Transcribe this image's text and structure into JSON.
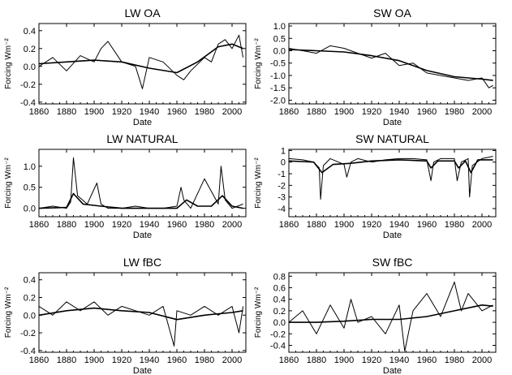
{
  "figure": {
    "panels": [
      {
        "title": "LW  OA",
        "xlabel": "Date",
        "ylabel": "Forcing Wm⁻²"
      },
      {
        "title": "SW  OA",
        "xlabel": "Date",
        "ylabel": "Forcing Wm⁻²"
      },
      {
        "title": "LW  NATURAL",
        "xlabel": "Date",
        "ylabel": "Forcing Wm⁻²"
      },
      {
        "title": "SW  NATURAL",
        "xlabel": "Date",
        "ylabel": "Forcing Wm⁻²"
      },
      {
        "title": "LW  fBC",
        "xlabel": "Date",
        "ylabel": "Forcing Wm⁻²"
      },
      {
        "title": "SW  fBC",
        "xlabel": "Date",
        "ylabel": "Forcing Wm⁻²"
      }
    ]
  },
  "chart_data": [
    {
      "type": "line",
      "title": "LW  OA",
      "xlabel": "Date",
      "ylabel": "Forcing Wm⁻²",
      "xlim": [
        1860,
        2010
      ],
      "ylim": [
        -0.42,
        0.48
      ],
      "xticks": [
        1860,
        1880,
        1900,
        1920,
        1940,
        1960,
        1980,
        2000
      ],
      "yticks": [
        -0.4,
        -0.2,
        0.0,
        0.2,
        0.4
      ],
      "ytick_labels": [
        "-0.4",
        "-0.2",
        "0.0",
        "0.2",
        "0.4"
      ],
      "series": [
        {
          "style": "annual",
          "x": [
            1860,
            1870,
            1880,
            1890,
            1900,
            1905,
            1910,
            1920,
            1930,
            1935,
            1940,
            1950,
            1960,
            1965,
            1970,
            1980,
            1985,
            1990,
            1995,
            2000,
            2005,
            2008
          ],
          "y": [
            0.0,
            0.1,
            -0.05,
            0.12,
            0.05,
            0.2,
            0.28,
            0.05,
            0.0,
            -0.25,
            0.1,
            0.05,
            -0.1,
            -0.15,
            -0.05,
            0.1,
            0.05,
            0.25,
            0.3,
            0.2,
            0.35,
            0.1
          ]
        },
        {
          "style": "smoothed",
          "x": [
            1860,
            1880,
            1900,
            1920,
            1940,
            1960,
            1975,
            1990,
            2000,
            2008
          ],
          "y": [
            0.03,
            0.05,
            0.07,
            0.05,
            -0.02,
            -0.07,
            0.05,
            0.22,
            0.25,
            0.2
          ]
        }
      ]
    },
    {
      "type": "line",
      "title": "SW  OA",
      "xlabel": "Date",
      "ylabel": "Forcing Wm⁻²",
      "xlim": [
        1860,
        2010
      ],
      "ylim": [
        -2.15,
        1.1
      ],
      "xticks": [
        1860,
        1880,
        1900,
        1920,
        1940,
        1960,
        1980,
        2000
      ],
      "yticks": [
        -2.0,
        -1.5,
        -1.0,
        -0.5,
        0.0,
        0.5,
        1.0
      ],
      "ytick_labels": [
        "-2.0",
        "-1.5",
        "-1.0",
        "-0.5",
        "0.0",
        "0.5",
        "1.0"
      ],
      "series": [
        {
          "style": "annual",
          "x": [
            1860,
            1870,
            1880,
            1890,
            1900,
            1910,
            1920,
            1930,
            1940,
            1950,
            1960,
            1970,
            1980,
            1990,
            2000,
            2005,
            2008
          ],
          "y": [
            0.1,
            0.0,
            -0.1,
            0.2,
            0.1,
            -0.1,
            -0.3,
            -0.1,
            -0.6,
            -0.5,
            -0.9,
            -1.0,
            -1.1,
            -1.2,
            -1.1,
            -1.5,
            -1.4
          ]
        },
        {
          "style": "smoothed",
          "x": [
            1860,
            1880,
            1900,
            1920,
            1940,
            1960,
            1980,
            2000,
            2008
          ],
          "y": [
            0.05,
            0.0,
            -0.05,
            -0.2,
            -0.4,
            -0.8,
            -1.05,
            -1.15,
            -1.2
          ]
        }
      ]
    },
    {
      "type": "line",
      "title": "LW  NATURAL",
      "xlabel": "Date",
      "ylabel": "Forcing Wm⁻²",
      "xlim": [
        1860,
        2010
      ],
      "ylim": [
        -0.2,
        1.4
      ],
      "xticks": [
        1860,
        1880,
        1900,
        1920,
        1940,
        1960,
        1980,
        2000
      ],
      "yticks": [
        0.0,
        0.5,
        1.0
      ],
      "ytick_labels": [
        "0.0",
        "0.5",
        "1.0"
      ],
      "series": [
        {
          "style": "annual",
          "x": [
            1860,
            1870,
            1880,
            1883,
            1885,
            1888,
            1895,
            1902,
            1905,
            1910,
            1920,
            1930,
            1940,
            1950,
            1960,
            1963,
            1965,
            1970,
            1980,
            1990,
            1992,
            1995,
            2000,
            2008
          ],
          "y": [
            0.0,
            0.05,
            0.0,
            0.15,
            1.2,
            0.3,
            0.1,
            0.6,
            0.1,
            0.0,
            0.0,
            0.05,
            0.0,
            0.0,
            0.05,
            0.5,
            0.2,
            0.0,
            0.7,
            0.1,
            1.0,
            0.2,
            0.0,
            0.1
          ]
        },
        {
          "style": "smoothed",
          "x": [
            1860,
            1880,
            1885,
            1892,
            1905,
            1920,
            1940,
            1960,
            1967,
            1975,
            1985,
            1993,
            2000,
            2008
          ],
          "y": [
            0.0,
            0.02,
            0.35,
            0.1,
            0.05,
            0.0,
            0.0,
            0.0,
            0.2,
            0.05,
            0.05,
            0.3,
            0.05,
            0.0
          ]
        }
      ]
    },
    {
      "type": "line",
      "title": "SW  NATURAL",
      "xlabel": "Date",
      "ylabel": "Forcing Wm⁻²",
      "xlim": [
        1860,
        2010
      ],
      "ylim": [
        -4.7,
        1.1
      ],
      "xticks": [
        1860,
        1880,
        1900,
        1920,
        1940,
        1960,
        1980,
        2000
      ],
      "yticks": [
        -4,
        -3,
        -2,
        -1,
        0,
        1
      ],
      "ytick_labels": [
        "-4",
        "-3",
        "-2",
        "-1",
        "0",
        "1"
      ],
      "series": [
        {
          "style": "annual",
          "x": [
            1860,
            1870,
            1878,
            1882,
            1883,
            1885,
            1890,
            1900,
            1902,
            1905,
            1910,
            1920,
            1930,
            1940,
            1950,
            1960,
            1963,
            1965,
            1970,
            1980,
            1982,
            1985,
            1990,
            1991,
            1993,
            2000,
            2008
          ],
          "y": [
            0.3,
            0.2,
            0.0,
            -0.5,
            -3.2,
            -0.3,
            0.3,
            -0.2,
            -1.3,
            0.0,
            0.3,
            0.0,
            0.2,
            0.3,
            0.3,
            0.2,
            -1.6,
            0.0,
            0.3,
            0.3,
            -1.6,
            0.0,
            0.3,
            -3.0,
            -0.3,
            0.3,
            0.5
          ]
        },
        {
          "style": "smoothed",
          "x": [
            1860,
            1878,
            1884,
            1892,
            1905,
            1920,
            1940,
            1960,
            1963,
            1968,
            1980,
            1983,
            1988,
            1992,
            1997,
            2008
          ],
          "y": [
            0.1,
            0.0,
            -0.9,
            -0.2,
            -0.1,
            0.1,
            0.2,
            0.1,
            -0.5,
            0.1,
            0.1,
            -0.5,
            0.1,
            -0.9,
            0.2,
            0.2
          ]
        }
      ]
    },
    {
      "type": "line",
      "title": "LW  fBC",
      "xlabel": "Date",
      "ylabel": "Forcing Wm⁻²",
      "xlim": [
        1860,
        2010
      ],
      "ylim": [
        -0.42,
        0.48
      ],
      "xticks": [
        1860,
        1880,
        1900,
        1920,
        1940,
        1960,
        1980,
        2000
      ],
      "yticks": [
        -0.4,
        -0.2,
        0.0,
        0.2,
        0.4
      ],
      "ytick_labels": [
        "-0.4",
        "-0.2",
        "0.0",
        "0.2",
        "0.4"
      ],
      "series": [
        {
          "style": "annual",
          "x": [
            1860,
            1870,
            1880,
            1890,
            1900,
            1910,
            1920,
            1930,
            1940,
            1950,
            1958,
            1960,
            1970,
            1980,
            1990,
            2000,
            2005,
            2008
          ],
          "y": [
            0.1,
            0.0,
            0.15,
            0.05,
            0.15,
            0.0,
            0.1,
            0.05,
            0.0,
            0.1,
            -0.35,
            0.05,
            0.0,
            0.1,
            0.0,
            0.1,
            -0.2,
            0.1
          ]
        },
        {
          "style": "smoothed",
          "x": [
            1860,
            1880,
            1900,
            1920,
            1940,
            1960,
            1980,
            2000,
            2008
          ],
          "y": [
            0.0,
            0.05,
            0.08,
            0.05,
            0.03,
            -0.05,
            0.0,
            0.03,
            0.05
          ]
        }
      ]
    },
    {
      "type": "line",
      "title": "SW  fBC",
      "xlabel": "Date",
      "ylabel": "Forcing Wm⁻²",
      "xlim": [
        1860,
        2010
      ],
      "ylim": [
        -0.52,
        0.86
      ],
      "xticks": [
        1860,
        1880,
        1900,
        1920,
        1940,
        1960,
        1980,
        2000
      ],
      "yticks": [
        -0.4,
        -0.2,
        0.0,
        0.2,
        0.4,
        0.6,
        0.8
      ],
      "ytick_labels": [
        "-0.4",
        "-0.2",
        "0.0",
        "0.2",
        "0.4",
        "0.6",
        "0.8"
      ],
      "series": [
        {
          "style": "annual",
          "x": [
            1860,
            1870,
            1880,
            1890,
            1900,
            1905,
            1910,
            1920,
            1930,
            1940,
            1944,
            1950,
            1960,
            1970,
            1980,
            1985,
            1990,
            2000,
            2008
          ],
          "y": [
            0.0,
            0.2,
            -0.2,
            0.3,
            -0.1,
            0.4,
            0.0,
            0.1,
            -0.2,
            0.3,
            -0.5,
            0.2,
            0.5,
            0.1,
            0.7,
            0.2,
            0.5,
            0.2,
            0.3
          ]
        },
        {
          "style": "smoothed",
          "x": [
            1860,
            1880,
            1900,
            1920,
            1940,
            1960,
            1980,
            2000,
            2008
          ],
          "y": [
            0.0,
            0.0,
            0.02,
            0.05,
            0.05,
            0.1,
            0.2,
            0.3,
            0.28
          ]
        }
      ]
    }
  ]
}
